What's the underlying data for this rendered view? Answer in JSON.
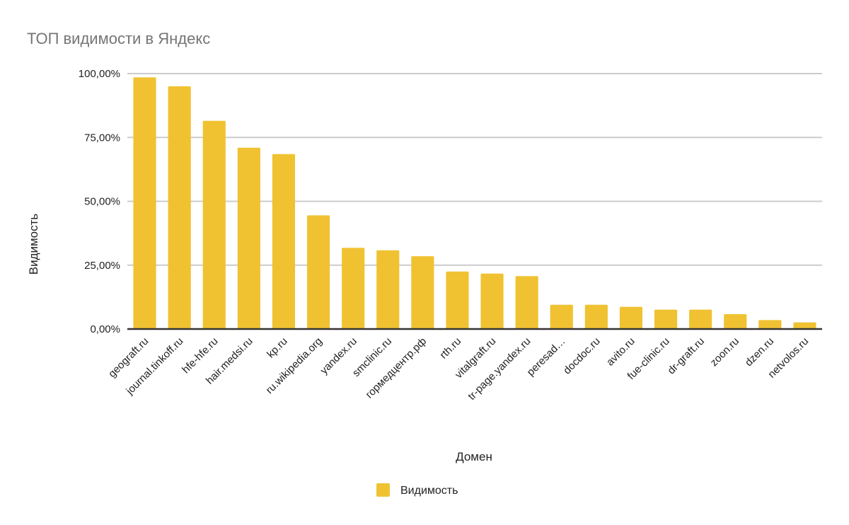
{
  "chart_data": {
    "type": "bar",
    "title": "ТОП видимости в Яндекс",
    "xlabel": "Домен",
    "ylabel": "Видимость",
    "categories": [
      "geograft.ru",
      "journal.tinkoff.ru",
      "hfe-hfe.ru",
      "hair.medsi.ru",
      "kp.ru",
      "ru.wikipedia.org",
      "yandex.ru",
      "smclinic.ru",
      "гормедцентр.рф",
      "rth.ru",
      "vitalgraft.ru",
      "tr-page.yandex.ru",
      "peresad…",
      "docdoc.ru",
      "avito.ru",
      "fue-clinic.ru",
      "dr-graft.ru",
      "zoon.ru",
      "dzen.ru",
      "netvolos.ru"
    ],
    "series": [
      {
        "name": "Видимость",
        "color": "#f0c232",
        "values": [
          98.5,
          95,
          81.5,
          71,
          68.5,
          44.5,
          31.8,
          30.8,
          28.5,
          22.5,
          21.7,
          20.7,
          9.5,
          9.5,
          8.7,
          7.6,
          7.6,
          5.8,
          3.5,
          2.6
        ]
      }
    ],
    "ylim": [
      0,
      100
    ],
    "yticks": [
      0,
      25,
      50,
      75,
      100
    ],
    "ytick_labels": [
      "0,00%",
      "25,00%",
      "50,00%",
      "75,00%",
      "100,00%"
    ],
    "grid": true,
    "legend_position": "bottom-center",
    "colors": {
      "bar": "#f0c232",
      "grid": "#cccccc",
      "baseline": "#333333",
      "title": "#757575"
    }
  }
}
